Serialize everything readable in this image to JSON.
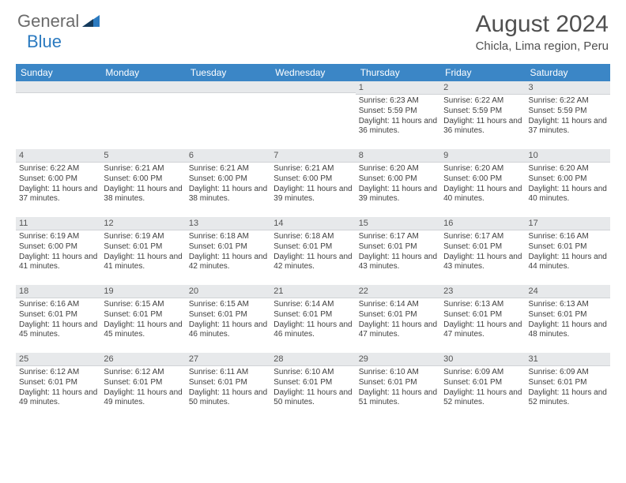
{
  "logo": {
    "text1": "General",
    "text2": "Blue"
  },
  "title": "August 2024",
  "location": "Chicla, Lima region, Peru",
  "colors": {
    "header_bg": "#3b86c6",
    "header_text": "#ffffff",
    "daynum_bg": "#e7e9eb",
    "body_text": "#404040",
    "title_text": "#505050",
    "logo_gray": "#6b6b6b",
    "logo_blue": "#2b7ac0"
  },
  "week_days": [
    "Sunday",
    "Monday",
    "Tuesday",
    "Wednesday",
    "Thursday",
    "Friday",
    "Saturday"
  ],
  "weeks": [
    [
      {
        "empty": true
      },
      {
        "empty": true
      },
      {
        "empty": true
      },
      {
        "empty": true
      },
      {
        "num": "1",
        "sunrise": "Sunrise: 6:23 AM",
        "sunset": "Sunset: 5:59 PM",
        "daylight": "Daylight: 11 hours and 36 minutes."
      },
      {
        "num": "2",
        "sunrise": "Sunrise: 6:22 AM",
        "sunset": "Sunset: 5:59 PM",
        "daylight": "Daylight: 11 hours and 36 minutes."
      },
      {
        "num": "3",
        "sunrise": "Sunrise: 6:22 AM",
        "sunset": "Sunset: 5:59 PM",
        "daylight": "Daylight: 11 hours and 37 minutes."
      }
    ],
    [
      {
        "num": "4",
        "sunrise": "Sunrise: 6:22 AM",
        "sunset": "Sunset: 6:00 PM",
        "daylight": "Daylight: 11 hours and 37 minutes."
      },
      {
        "num": "5",
        "sunrise": "Sunrise: 6:21 AM",
        "sunset": "Sunset: 6:00 PM",
        "daylight": "Daylight: 11 hours and 38 minutes."
      },
      {
        "num": "6",
        "sunrise": "Sunrise: 6:21 AM",
        "sunset": "Sunset: 6:00 PM",
        "daylight": "Daylight: 11 hours and 38 minutes."
      },
      {
        "num": "7",
        "sunrise": "Sunrise: 6:21 AM",
        "sunset": "Sunset: 6:00 PM",
        "daylight": "Daylight: 11 hours and 39 minutes."
      },
      {
        "num": "8",
        "sunrise": "Sunrise: 6:20 AM",
        "sunset": "Sunset: 6:00 PM",
        "daylight": "Daylight: 11 hours and 39 minutes."
      },
      {
        "num": "9",
        "sunrise": "Sunrise: 6:20 AM",
        "sunset": "Sunset: 6:00 PM",
        "daylight": "Daylight: 11 hours and 40 minutes."
      },
      {
        "num": "10",
        "sunrise": "Sunrise: 6:20 AM",
        "sunset": "Sunset: 6:00 PM",
        "daylight": "Daylight: 11 hours and 40 minutes."
      }
    ],
    [
      {
        "num": "11",
        "sunrise": "Sunrise: 6:19 AM",
        "sunset": "Sunset: 6:00 PM",
        "daylight": "Daylight: 11 hours and 41 minutes."
      },
      {
        "num": "12",
        "sunrise": "Sunrise: 6:19 AM",
        "sunset": "Sunset: 6:01 PM",
        "daylight": "Daylight: 11 hours and 41 minutes."
      },
      {
        "num": "13",
        "sunrise": "Sunrise: 6:18 AM",
        "sunset": "Sunset: 6:01 PM",
        "daylight": "Daylight: 11 hours and 42 minutes."
      },
      {
        "num": "14",
        "sunrise": "Sunrise: 6:18 AM",
        "sunset": "Sunset: 6:01 PM",
        "daylight": "Daylight: 11 hours and 42 minutes."
      },
      {
        "num": "15",
        "sunrise": "Sunrise: 6:17 AM",
        "sunset": "Sunset: 6:01 PM",
        "daylight": "Daylight: 11 hours and 43 minutes."
      },
      {
        "num": "16",
        "sunrise": "Sunrise: 6:17 AM",
        "sunset": "Sunset: 6:01 PM",
        "daylight": "Daylight: 11 hours and 43 minutes."
      },
      {
        "num": "17",
        "sunrise": "Sunrise: 6:16 AM",
        "sunset": "Sunset: 6:01 PM",
        "daylight": "Daylight: 11 hours and 44 minutes."
      }
    ],
    [
      {
        "num": "18",
        "sunrise": "Sunrise: 6:16 AM",
        "sunset": "Sunset: 6:01 PM",
        "daylight": "Daylight: 11 hours and 45 minutes."
      },
      {
        "num": "19",
        "sunrise": "Sunrise: 6:15 AM",
        "sunset": "Sunset: 6:01 PM",
        "daylight": "Daylight: 11 hours and 45 minutes."
      },
      {
        "num": "20",
        "sunrise": "Sunrise: 6:15 AM",
        "sunset": "Sunset: 6:01 PM",
        "daylight": "Daylight: 11 hours and 46 minutes."
      },
      {
        "num": "21",
        "sunrise": "Sunrise: 6:14 AM",
        "sunset": "Sunset: 6:01 PM",
        "daylight": "Daylight: 11 hours and 46 minutes."
      },
      {
        "num": "22",
        "sunrise": "Sunrise: 6:14 AM",
        "sunset": "Sunset: 6:01 PM",
        "daylight": "Daylight: 11 hours and 47 minutes."
      },
      {
        "num": "23",
        "sunrise": "Sunrise: 6:13 AM",
        "sunset": "Sunset: 6:01 PM",
        "daylight": "Daylight: 11 hours and 47 minutes."
      },
      {
        "num": "24",
        "sunrise": "Sunrise: 6:13 AM",
        "sunset": "Sunset: 6:01 PM",
        "daylight": "Daylight: 11 hours and 48 minutes."
      }
    ],
    [
      {
        "num": "25",
        "sunrise": "Sunrise: 6:12 AM",
        "sunset": "Sunset: 6:01 PM",
        "daylight": "Daylight: 11 hours and 49 minutes."
      },
      {
        "num": "26",
        "sunrise": "Sunrise: 6:12 AM",
        "sunset": "Sunset: 6:01 PM",
        "daylight": "Daylight: 11 hours and 49 minutes."
      },
      {
        "num": "27",
        "sunrise": "Sunrise: 6:11 AM",
        "sunset": "Sunset: 6:01 PM",
        "daylight": "Daylight: 11 hours and 50 minutes."
      },
      {
        "num": "28",
        "sunrise": "Sunrise: 6:10 AM",
        "sunset": "Sunset: 6:01 PM",
        "daylight": "Daylight: 11 hours and 50 minutes."
      },
      {
        "num": "29",
        "sunrise": "Sunrise: 6:10 AM",
        "sunset": "Sunset: 6:01 PM",
        "daylight": "Daylight: 11 hours and 51 minutes."
      },
      {
        "num": "30",
        "sunrise": "Sunrise: 6:09 AM",
        "sunset": "Sunset: 6:01 PM",
        "daylight": "Daylight: 11 hours and 52 minutes."
      },
      {
        "num": "31",
        "sunrise": "Sunrise: 6:09 AM",
        "sunset": "Sunset: 6:01 PM",
        "daylight": "Daylight: 11 hours and 52 minutes."
      }
    ]
  ]
}
